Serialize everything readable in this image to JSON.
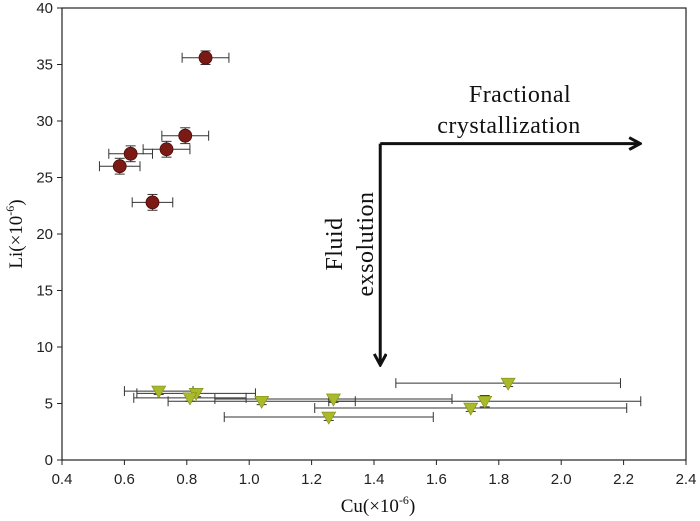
{
  "chart_data": {
    "type": "scatter",
    "xlabel": "Cu(×10",
    "xlabel_sup": "-6",
    "xlabel_end": ")",
    "ylabel": "Li(×10",
    "ylabel_sup": "-6",
    "ylabel_end": ")",
    "xlim": [
      0.4,
      2.4
    ],
    "ylim": [
      0,
      40
    ],
    "xticks": [
      0.4,
      0.6,
      0.8,
      1.0,
      1.2,
      1.4,
      1.6,
      1.8,
      2.0,
      2.2,
      2.4
    ],
    "xtick_labels": [
      "0.4",
      "0.6",
      "0.8",
      "1.0",
      "1.2",
      "1.4",
      "1.6",
      "1.8",
      "2.0",
      "2.2",
      "2.4"
    ],
    "yticks": [
      0,
      5,
      10,
      15,
      20,
      25,
      30,
      35,
      40
    ],
    "ytick_labels": [
      "0",
      "5",
      "10",
      "15",
      "20",
      "25",
      "30",
      "35",
      "40"
    ],
    "series": [
      {
        "marker": "circle",
        "color": "#7b1a14",
        "points": [
          {
            "x": 0.86,
            "y": 35.6,
            "xerr": 0.075,
            "yerr": 0.6
          },
          {
            "x": 0.795,
            "y": 28.7,
            "xerr": 0.075,
            "yerr": 0.7
          },
          {
            "x": 0.735,
            "y": 27.5,
            "xerr": 0.075,
            "yerr": 0.7
          },
          {
            "x": 0.62,
            "y": 27.1,
            "xerr": 0.07,
            "yerr": 0.7
          },
          {
            "x": 0.585,
            "y": 26.0,
            "xerr": 0.065,
            "yerr": 0.7
          },
          {
            "x": 0.69,
            "y": 22.8,
            "xerr": 0.065,
            "yerr": 0.7
          }
        ]
      },
      {
        "marker": "triangle-down",
        "color": "#a9b92a",
        "points": [
          {
            "x": 1.83,
            "y": 6.8,
            "xerr": 0.36,
            "yerr": 0.3
          },
          {
            "x": 0.71,
            "y": 6.1,
            "xerr": 0.11,
            "yerr": 0.3
          },
          {
            "x": 0.83,
            "y": 5.9,
            "xerr": 0.19,
            "yerr": 0.3
          },
          {
            "x": 0.81,
            "y": 5.5,
            "xerr": 0.18,
            "yerr": 0.3
          },
          {
            "x": 1.04,
            "y": 5.2,
            "xerr": 0.3,
            "yerr": 0.3
          },
          {
            "x": 1.27,
            "y": 5.4,
            "xerr": 0.38,
            "yerr": 0.3
          },
          {
            "x": 1.755,
            "y": 5.2,
            "xerr": 0.5,
            "yerr": 0.5
          },
          {
            "x": 1.71,
            "y": 4.6,
            "xerr": 0.5,
            "yerr": 0.3
          },
          {
            "x": 1.255,
            "y": 3.8,
            "xerr": 0.335,
            "yerr": 0.3
          }
        ]
      }
    ],
    "annotations": {
      "horizontal": {
        "line1": "Fractional",
        "line2": "crystallization",
        "arrow_from": [
          1.42,
          28.0
        ],
        "arrow_to": [
          2.25,
          28.0
        ]
      },
      "vertical": {
        "line1": "Fluid",
        "line2": "exsolution",
        "arrow_from": [
          1.42,
          28.0
        ],
        "arrow_to": [
          1.42,
          8.5
        ]
      }
    }
  }
}
